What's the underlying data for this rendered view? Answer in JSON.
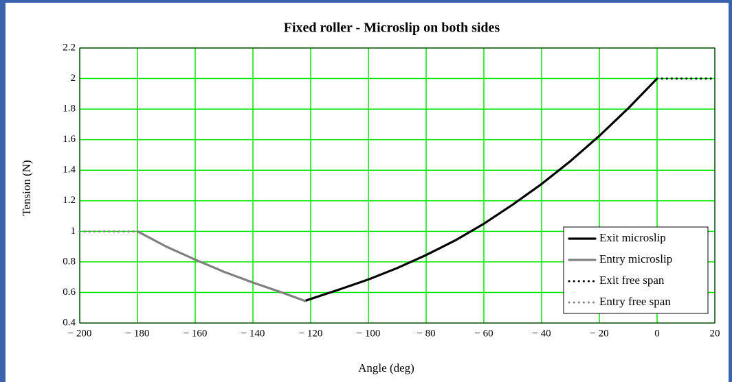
{
  "chart_data": {
    "type": "line",
    "title": "Fixed roller - Microslip on both sides",
    "xlabel": "Angle (deg)",
    "ylabel": "Tension (N)",
    "xlim": [
      -200,
      20
    ],
    "ylim": [
      0.4,
      2.2
    ],
    "xticks": [
      {
        "value": -200,
        "label": "− 200"
      },
      {
        "value": -180,
        "label": "− 180"
      },
      {
        "value": -160,
        "label": "− 160"
      },
      {
        "value": -140,
        "label": "− 140"
      },
      {
        "value": -120,
        "label": "− 120"
      },
      {
        "value": -100,
        "label": "− 100"
      },
      {
        "value": -80,
        "label": "− 80"
      },
      {
        "value": -60,
        "label": "− 60"
      },
      {
        "value": -40,
        "label": "− 40"
      },
      {
        "value": -20,
        "label": "− 20"
      },
      0,
      20
    ],
    "yticks": [
      0.4,
      0.6,
      0.8,
      1,
      1.2,
      1.4,
      1.6,
      1.8,
      2,
      2.2
    ],
    "grid": true,
    "grid_color": "#00e600",
    "legend": "lower right",
    "series": [
      {
        "name": "Exit microslip",
        "color": "#000000",
        "line_style": "solid",
        "x": [
          -122,
          -110,
          -100,
          -90,
          -80,
          -70,
          -60,
          -50,
          -40,
          -30,
          -20,
          -10,
          0
        ],
        "values": [
          0.545,
          0.62,
          0.685,
          0.76,
          0.845,
          0.94,
          1.05,
          1.175,
          1.31,
          1.46,
          1.625,
          1.805,
          2.0
        ]
      },
      {
        "name": "Entry microslip",
        "color": "#808080",
        "line_style": "solid",
        "x": [
          -180,
          -170,
          -160,
          -150,
          -140,
          -130,
          -122
        ],
        "values": [
          1.0,
          0.9,
          0.815,
          0.735,
          0.665,
          0.6,
          0.545
        ]
      },
      {
        "name": "Exit free span",
        "color": "#000000",
        "line_style": "dotted",
        "x": [
          0,
          20
        ],
        "values": [
          2,
          2
        ]
      },
      {
        "name": "Entry free span",
        "color": "#808080",
        "line_style": "dotted",
        "x": [
          -200,
          -180
        ],
        "values": [
          1,
          1
        ]
      }
    ]
  }
}
